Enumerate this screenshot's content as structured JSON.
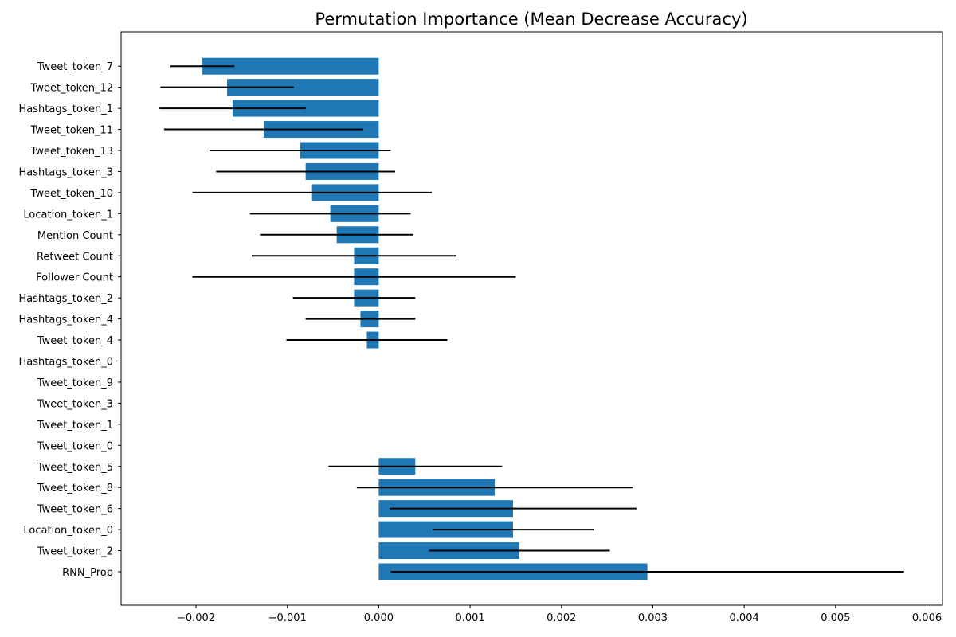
{
  "chart_data": {
    "type": "bar",
    "orientation": "horizontal",
    "title": "Permutation Importance (Mean Decrease Accuracy)",
    "xlabel": "",
    "ylabel": "",
    "xlim": [
      -0.00282,
      0.00617
    ],
    "x_ticks": [
      -0.002,
      -0.001,
      0.0,
      0.001,
      0.002,
      0.003,
      0.004,
      0.005,
      0.006
    ],
    "x_tick_labels": [
      "−0.002",
      "−0.001",
      "0.000",
      "0.001",
      "0.002",
      "0.003",
      "0.004",
      "0.005",
      "0.006"
    ],
    "grid": false,
    "bar_color": "#1f77b4",
    "errorbar_color": "#000000",
    "categories": [
      "RNN_Prob",
      "Tweet_token_2",
      "Location_token_0",
      "Tweet_token_6",
      "Tweet_token_8",
      "Tweet_token_5",
      "Tweet_token_0",
      "Tweet_token_1",
      "Tweet_token_3",
      "Tweet_token_9",
      "Hashtags_token_0",
      "Tweet_token_4",
      "Hashtags_token_4",
      "Hashtags_token_2",
      "Follower Count",
      "Retweet Count",
      "Mention Count",
      "Location_token_1",
      "Tweet_token_10",
      "Hashtags_token_3",
      "Tweet_token_13",
      "Tweet_token_11",
      "Hashtags_token_1",
      "Tweet_token_12",
      "Tweet_token_7"
    ],
    "values": [
      0.00294,
      0.00154,
      0.00147,
      0.00147,
      0.00127,
      0.0004,
      0.0,
      0.0,
      0.0,
      0.0,
      0.0,
      -0.00013,
      -0.0002,
      -0.00027,
      -0.00027,
      -0.00027,
      -0.00046,
      -0.00053,
      -0.00073,
      -0.0008,
      -0.00086,
      -0.00126,
      -0.0016,
      -0.00166,
      -0.00193
    ],
    "errors": [
      0.00281,
      0.00099,
      0.00088,
      0.00135,
      0.00151,
      0.00095,
      0.0,
      0.0,
      0.0,
      0.0,
      0.0,
      0.00088,
      0.0006,
      0.00067,
      0.00177,
      0.00112,
      0.00084,
      0.00088,
      0.00131,
      0.00098,
      0.00099,
      0.00109,
      0.0008,
      0.00073,
      0.00035
    ]
  }
}
